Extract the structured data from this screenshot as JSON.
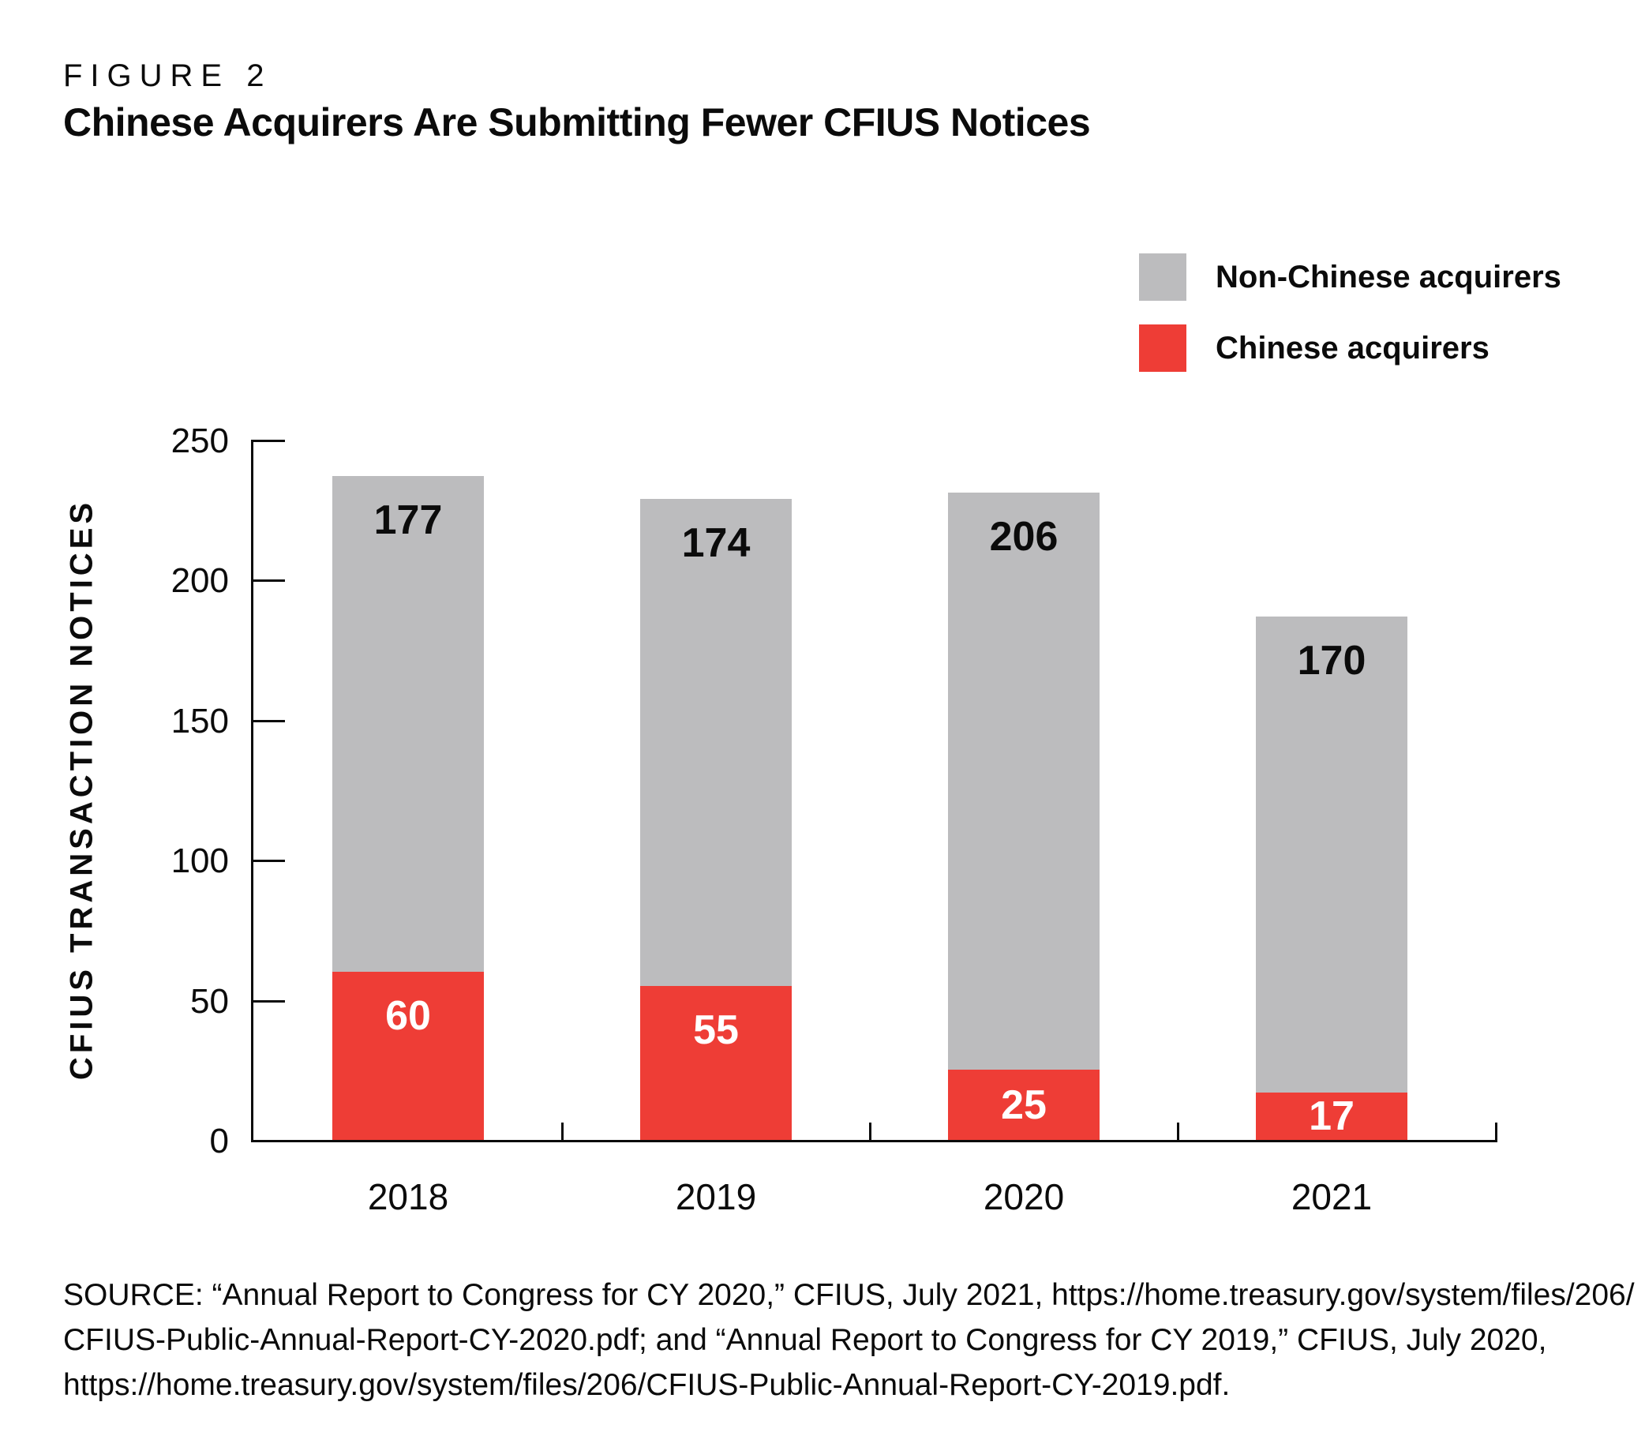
{
  "figure_label": "FIGURE 2",
  "title": "Chinese Acquirers Are Submitting Fewer CFIUS Notices",
  "legend": [
    {
      "label": "Non-Chinese acquirers",
      "color": "#bcbcbe"
    },
    {
      "label": "Chinese acquirers",
      "color": "#ee3d36"
    }
  ],
  "chart_data": {
    "type": "bar",
    "stacked": true,
    "categories": [
      "2018",
      "2019",
      "2020",
      "2021"
    ],
    "series": [
      {
        "name": "Chinese acquirers",
        "color": "#ee3d36",
        "values": [
          60,
          55,
          25,
          17
        ]
      },
      {
        "name": "Non-Chinese acquirers",
        "color": "#bcbcbe",
        "values": [
          177,
          174,
          206,
          170
        ]
      }
    ],
    "totals": [
      237,
      229,
      231,
      187
    ],
    "title": "Chinese Acquirers Are Submitting Fewer CFIUS Notices",
    "xlabel": "",
    "ylabel": "CFIUS TRANSACTION NOTICES",
    "ylim": [
      0,
      250
    ],
    "yticks": [
      0,
      50,
      100,
      150,
      200,
      250
    ],
    "grid": false,
    "legend_position": "top-right",
    "bar_value_labels": true
  },
  "source": {
    "lines": [
      "SOURCE: “Annual Report to Congress for CY 2020,” CFIUS, July 2021, https://home.treasury.gov/system/files/206/",
      "CFIUS-Public-Annual-Report-CY-2020.pdf; and “Annual Report to Congress for CY 2019,” CFIUS, July 2020,",
      "https://home.treasury.gov/system/files/206/CFIUS-Public-Annual-Report-CY-2019.pdf."
    ]
  },
  "colors": {
    "red": "#ee3d36",
    "gray": "#bcbcbe",
    "axis": "#0b0b0b",
    "text": "#0b0b0b"
  }
}
